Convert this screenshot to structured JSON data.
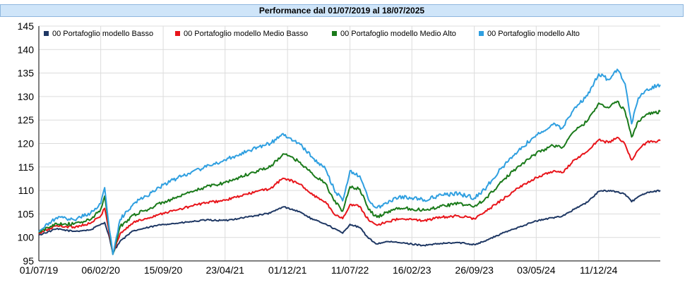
{
  "title": "Performance dal 01/07/2019 al 18/07/2025",
  "chart_data": {
    "type": "line",
    "title": "Performance dal 01/07/2019 al 18/07/2025",
    "xlabel": "",
    "ylabel": "",
    "ylim": [
      95,
      145
    ],
    "y_ticks": [
      95,
      100,
      105,
      110,
      115,
      120,
      125,
      130,
      135,
      140,
      145
    ],
    "x_range": [
      "2019-07-01",
      "2025-07-18"
    ],
    "x_ticks": [
      "01/07/19",
      "06/02/20",
      "15/09/20",
      "23/04/21",
      "01/12/21",
      "11/07/22",
      "16/02/23",
      "26/09/23",
      "03/05/24",
      "11/12/24"
    ],
    "grid": true,
    "legend_position": "top",
    "x": [
      "2019-07-01",
      "2019-09-01",
      "2019-11-01",
      "2020-01-01",
      "2020-02-06",
      "2020-02-20",
      "2020-03-05",
      "2020-03-20",
      "2020-04-15",
      "2020-06-01",
      "2020-07-15",
      "2020-09-15",
      "2020-11-01",
      "2021-01-01",
      "2021-02-15",
      "2021-04-23",
      "2021-06-15",
      "2021-08-15",
      "2021-10-01",
      "2021-11-15",
      "2021-12-01",
      "2022-01-15",
      "2022-03-01",
      "2022-04-15",
      "2022-05-15",
      "2022-06-15",
      "2022-07-11",
      "2022-08-15",
      "2022-09-15",
      "2022-10-15",
      "2022-11-15",
      "2023-01-01",
      "2023-02-16",
      "2023-04-01",
      "2023-06-01",
      "2023-08-01",
      "2023-09-26",
      "2023-11-01",
      "2024-01-01",
      "2024-03-01",
      "2024-05-03",
      "2024-07-01",
      "2024-08-05",
      "2024-09-15",
      "2024-11-01",
      "2024-12-11",
      "2025-01-15",
      "2025-02-15",
      "2025-03-15",
      "2025-04-07",
      "2025-05-01",
      "2025-06-01",
      "2025-07-18"
    ],
    "series": [
      {
        "name": "00 Portafoglio modello Basso",
        "color": "#1f3864",
        "values": [
          100.5,
          101.8,
          101.3,
          101.6,
          102.8,
          103.2,
          100.6,
          96.8,
          99.2,
          101.4,
          102.0,
          102.8,
          103.0,
          103.4,
          103.7,
          103.6,
          104.1,
          104.7,
          105.2,
          106.5,
          106.3,
          105.4,
          103.8,
          102.9,
          101.9,
          100.9,
          102.8,
          102.1,
          99.8,
          98.6,
          99.1,
          98.9,
          98.6,
          98.3,
          98.7,
          98.9,
          98.5,
          99.2,
          100.8,
          102.2,
          103.5,
          104.2,
          104.6,
          106.0,
          107.5,
          109.8,
          110.0,
          109.7,
          109.2,
          107.6,
          108.7,
          109.6,
          110.0
        ]
      },
      {
        "name": "00 Portafoglio modello Medio Basso",
        "color": "#e8141a",
        "values": [
          100.8,
          102.5,
          102.2,
          103.0,
          104.6,
          106.2,
          101.8,
          96.6,
          100.8,
          103.2,
          104.0,
          105.2,
          105.8,
          106.8,
          107.4,
          107.9,
          108.8,
          109.8,
          110.4,
          112.6,
          112.4,
          111.3,
          109.0,
          107.6,
          105.0,
          104.0,
          107.0,
          106.6,
          103.7,
          102.6,
          103.3,
          103.9,
          103.8,
          103.6,
          104.3,
          104.6,
          104.0,
          105.3,
          108.0,
          110.5,
          112.8,
          114.0,
          113.8,
          116.5,
          118.3,
          120.8,
          120.2,
          121.3,
          119.8,
          116.5,
          118.6,
          120.3,
          120.6
        ]
      },
      {
        "name": "00 Portafoglio modello Medio Alto",
        "color": "#1a7a1a",
        "values": [
          101.0,
          103.0,
          102.8,
          103.8,
          106.0,
          108.8,
          102.5,
          96.4,
          102.3,
          104.8,
          105.8,
          107.5,
          108.4,
          109.8,
          110.8,
          111.7,
          112.8,
          114.2,
          115.0,
          117.8,
          117.4,
          116.0,
          113.4,
          111.5,
          107.8,
          105.6,
          110.8,
          110.3,
          105.9,
          104.3,
          105.3,
          106.3,
          106.1,
          105.8,
          106.7,
          107.2,
          106.6,
          108.0,
          111.8,
          115.2,
          117.9,
          119.6,
          119.2,
          122.6,
          124.8,
          128.6,
          127.6,
          129.0,
          126.8,
          121.4,
          124.8,
          126.3,
          126.8
        ]
      },
      {
        "name": "00 Portafoglio modello Alto",
        "color": "#2f9fe0",
        "values": [
          101.2,
          104.2,
          103.8,
          105.2,
          107.2,
          110.6,
          103.0,
          96.4,
          103.8,
          107.2,
          108.8,
          111.2,
          112.5,
          114.2,
          115.0,
          116.5,
          117.8,
          119.2,
          120.0,
          122.1,
          121.2,
          119.8,
          116.9,
          114.6,
          110.3,
          107.8,
          114.2,
          113.1,
          108.0,
          106.3,
          107.4,
          108.7,
          108.4,
          108.0,
          109.0,
          109.3,
          108.4,
          110.2,
          114.8,
          118.5,
          121.8,
          124.0,
          123.3,
          127.5,
          130.2,
          134.8,
          133.6,
          135.8,
          132.7,
          124.2,
          129.7,
          131.6,
          132.5
        ]
      }
    ]
  }
}
